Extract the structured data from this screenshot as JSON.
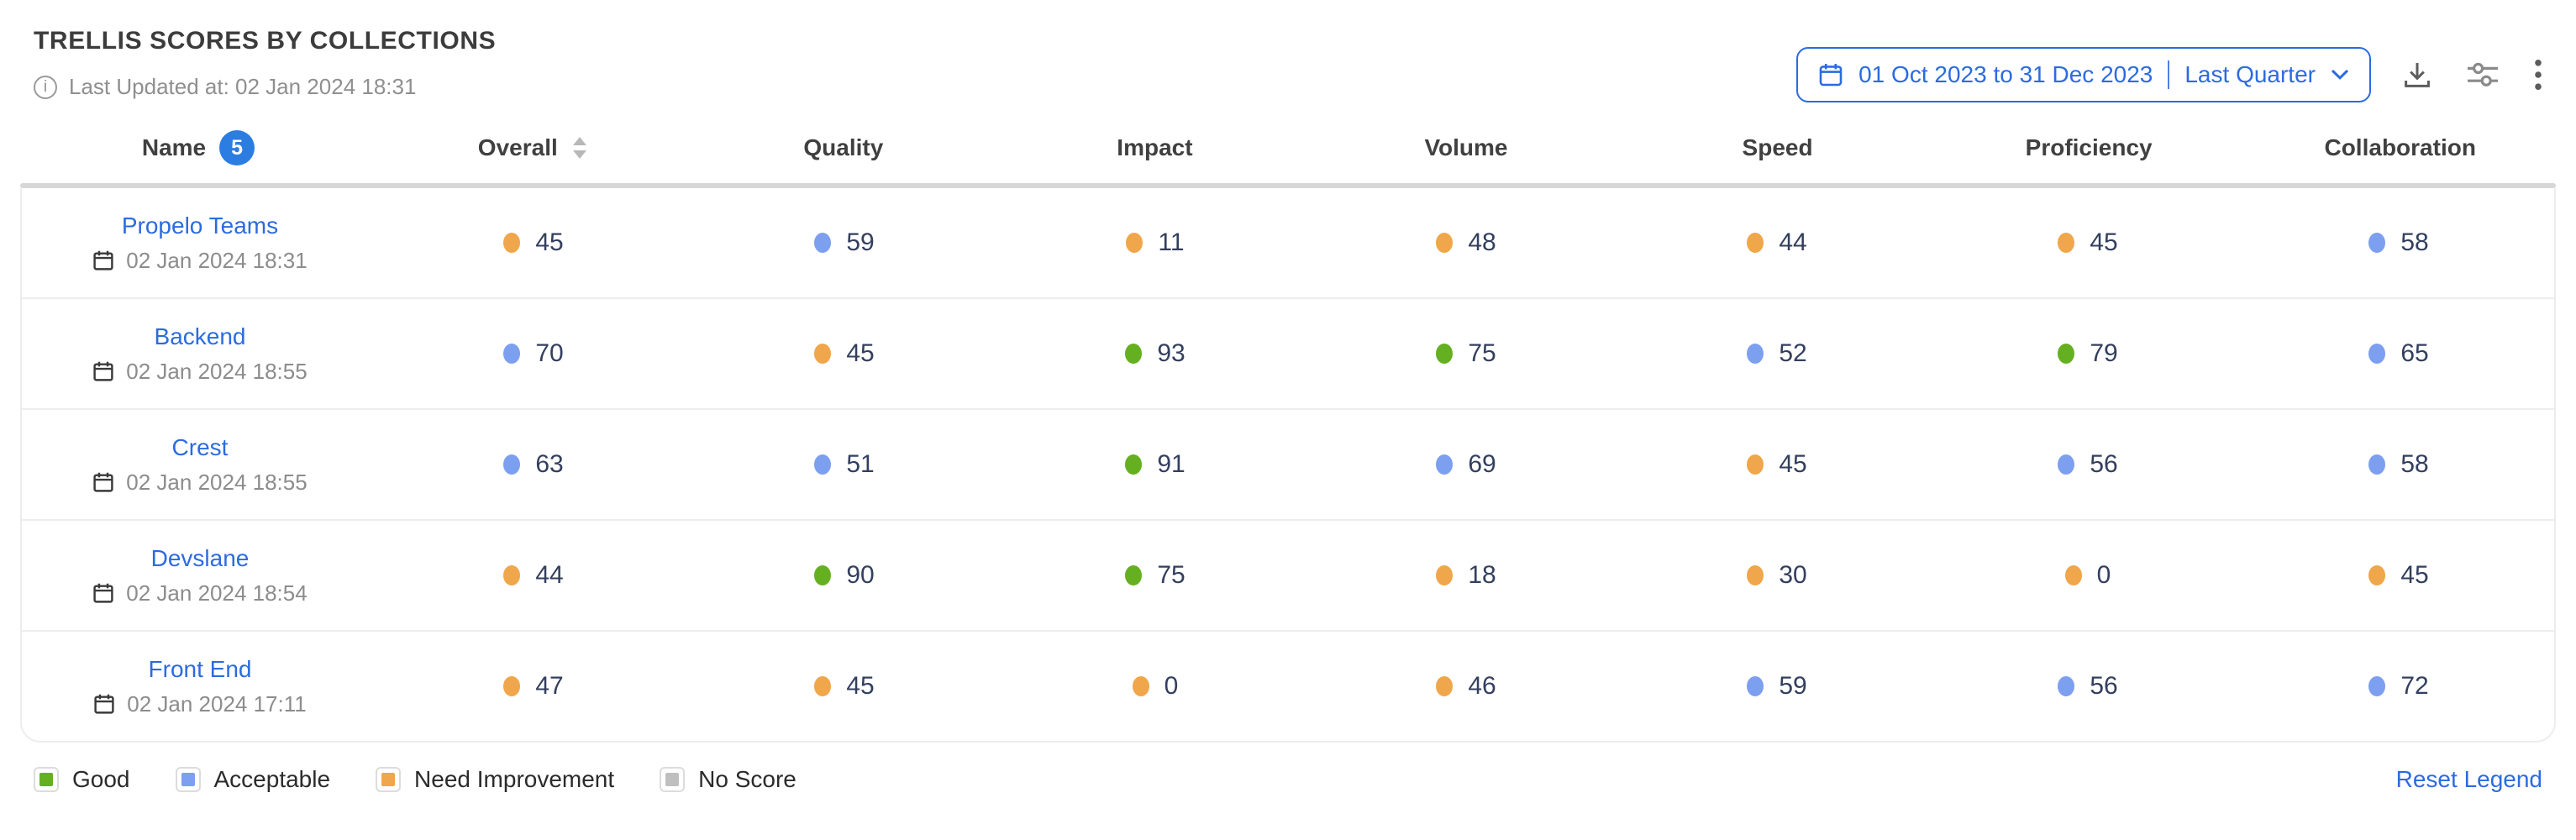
{
  "title": "TRELLIS SCORES BY COLLECTIONS",
  "last_updated": "Last Updated at: 02 Jan 2024 18:31",
  "toolbar": {
    "date_range": "01 Oct 2023 to 31 Dec 2023",
    "date_preset": "Last Quarter"
  },
  "table": {
    "name_header": "Name",
    "row_count_badge": "5",
    "score_columns": [
      {
        "label": "Overall",
        "sortable": true
      },
      {
        "label": "Quality",
        "sortable": false
      },
      {
        "label": "Impact",
        "sortable": false
      },
      {
        "label": "Volume",
        "sortable": false
      },
      {
        "label": "Speed",
        "sortable": false
      },
      {
        "label": "Proficiency",
        "sortable": false
      },
      {
        "label": "Collaboration",
        "sortable": false
      }
    ],
    "rows": [
      {
        "name": "Propelo Teams",
        "updated": "02 Jan 2024 18:31",
        "scores": [
          {
            "value": 45,
            "status": "need_improvement"
          },
          {
            "value": 59,
            "status": "acceptable"
          },
          {
            "value": 11,
            "status": "need_improvement"
          },
          {
            "value": 48,
            "status": "need_improvement"
          },
          {
            "value": 44,
            "status": "need_improvement"
          },
          {
            "value": 45,
            "status": "need_improvement"
          },
          {
            "value": 58,
            "status": "acceptable"
          }
        ]
      },
      {
        "name": "Backend",
        "updated": "02 Jan 2024 18:55",
        "scores": [
          {
            "value": 70,
            "status": "acceptable"
          },
          {
            "value": 45,
            "status": "need_improvement"
          },
          {
            "value": 93,
            "status": "good"
          },
          {
            "value": 75,
            "status": "good"
          },
          {
            "value": 52,
            "status": "acceptable"
          },
          {
            "value": 79,
            "status": "good"
          },
          {
            "value": 65,
            "status": "acceptable"
          }
        ]
      },
      {
        "name": "Crest",
        "updated": "02 Jan 2024 18:55",
        "scores": [
          {
            "value": 63,
            "status": "acceptable"
          },
          {
            "value": 51,
            "status": "acceptable"
          },
          {
            "value": 91,
            "status": "good"
          },
          {
            "value": 69,
            "status": "acceptable"
          },
          {
            "value": 45,
            "status": "need_improvement"
          },
          {
            "value": 56,
            "status": "acceptable"
          },
          {
            "value": 58,
            "status": "acceptable"
          }
        ]
      },
      {
        "name": "Devslane",
        "updated": "02 Jan 2024 18:54",
        "scores": [
          {
            "value": 44,
            "status": "need_improvement"
          },
          {
            "value": 90,
            "status": "good"
          },
          {
            "value": 75,
            "status": "good"
          },
          {
            "value": 18,
            "status": "need_improvement"
          },
          {
            "value": 30,
            "status": "need_improvement"
          },
          {
            "value": 0,
            "status": "need_improvement"
          },
          {
            "value": 45,
            "status": "need_improvement"
          }
        ]
      },
      {
        "name": "Front End",
        "updated": "02 Jan 2024 17:11",
        "scores": [
          {
            "value": 47,
            "status": "need_improvement"
          },
          {
            "value": 45,
            "status": "need_improvement"
          },
          {
            "value": 0,
            "status": "need_improvement"
          },
          {
            "value": 46,
            "status": "need_improvement"
          },
          {
            "value": 59,
            "status": "acceptable"
          },
          {
            "value": 56,
            "status": "acceptable"
          },
          {
            "value": 72,
            "status": "acceptable"
          }
        ]
      }
    ]
  },
  "legend": {
    "items": [
      {
        "label": "Good",
        "status": "good"
      },
      {
        "label": "Acceptable",
        "status": "acceptable"
      },
      {
        "label": "Need Improvement",
        "status": "need_improvement"
      },
      {
        "label": "No Score",
        "status": "no_score"
      }
    ],
    "reset_label": "Reset Legend"
  },
  "status_colors": {
    "good": "#65b021",
    "acceptable": "#7d9ff0",
    "need_improvement": "#f0a64a",
    "no_score": "#bfbfbf"
  },
  "accent_color": "#2b6be0"
}
